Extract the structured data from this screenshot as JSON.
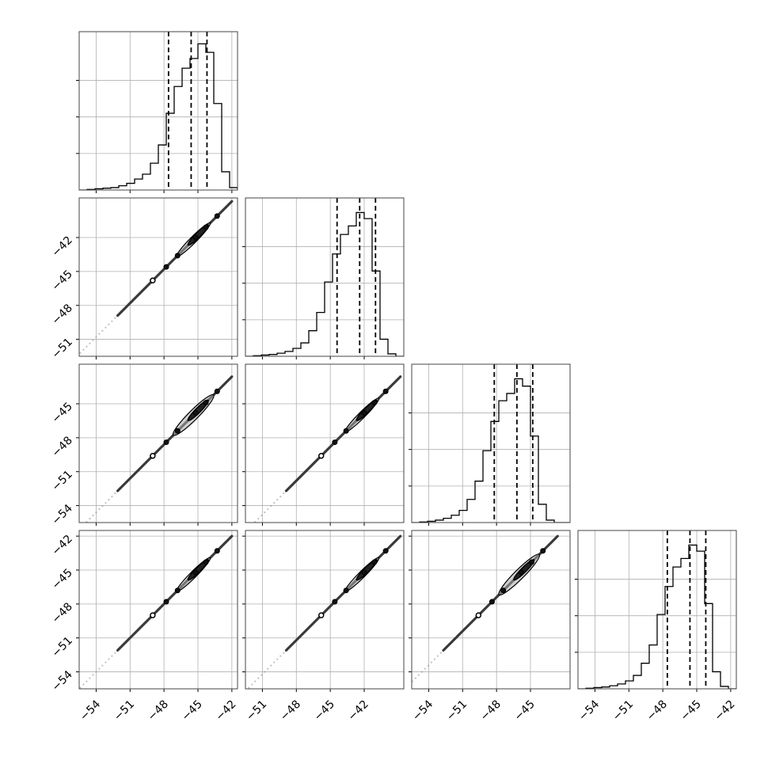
{
  "chart_data": {
    "type": "corner",
    "n_parameters": 4,
    "axis_labels": [
      "",
      "",
      "",
      ""
    ],
    "quantile_fractions": [
      0.16,
      0.5,
      0.84
    ],
    "params": [
      {
        "range": [
          -55.5,
          -41.5
        ],
        "xticks": [
          "−54",
          "−51",
          "−48",
          "−45",
          "−42"
        ],
        "xtick_values": [
          -54,
          -51,
          -48,
          -45,
          -42
        ],
        "yticks": [],
        "ytick_values": [],
        "quantiles": [
          -47.6,
          -45.6,
          -44.2
        ],
        "hist_bins": {
          "start": -55.5,
          "width": 0.7,
          "heights": [
            0.0,
            0.005,
            0.01,
            0.015,
            0.02,
            0.035,
            0.055,
            0.09,
            0.13,
            0.22,
            0.37,
            0.63,
            0.85,
            1.0,
            1.08,
            1.2,
            1.13,
            0.71,
            0.15,
            0.02
          ]
        }
      },
      {
        "range": [
          -52.5,
          -38.5
        ],
        "xticks": [
          "−51",
          "−48",
          "−45",
          "−42"
        ],
        "xtick_values": [
          -51,
          -48,
          -45,
          -42
        ],
        "yticks": [
          "−42",
          "−45",
          "−48",
          "−51"
        ],
        "ytick_values": [
          -42,
          -45,
          -48,
          -51
        ],
        "quantiles": [
          -44.4,
          -42.4,
          -41.0
        ],
        "hist_bins": {
          "start": -52.5,
          "width": 0.7,
          "heights": [
            0.0,
            0.005,
            0.01,
            0.015,
            0.025,
            0.04,
            0.065,
            0.11,
            0.21,
            0.36,
            0.61,
            0.84,
            1.0,
            1.07,
            1.18,
            1.13,
            0.7,
            0.14,
            0.02,
            0.0
          ]
        }
      },
      {
        "range": [
          -55.5,
          -41.5
        ],
        "xticks": [
          "−54",
          "−51",
          "−48",
          "−45"
        ],
        "xtick_values": [
          -54,
          -51,
          -48,
          -45
        ],
        "yticks": [
          "−45",
          "−48",
          "−51",
          "−54"
        ],
        "ytick_values": [
          -45,
          -48,
          -51,
          -54
        ],
        "quantiles": [
          -48.2,
          -46.2,
          -44.8
        ],
        "hist_bins": {
          "start": -55.5,
          "width": 0.7,
          "heights": [
            0.0,
            0.005,
            0.01,
            0.02,
            0.035,
            0.06,
            0.1,
            0.19,
            0.34,
            0.59,
            0.83,
            1.0,
            1.06,
            1.18,
            1.12,
            0.71,
            0.15,
            0.02,
            0.0,
            0.0
          ]
        }
      },
      {
        "range": [
          -55.5,
          -41.5
        ],
        "xticks": [
          "−54",
          "−51",
          "−48",
          "−45",
          "−42"
        ],
        "xtick_values": [
          -54,
          -51,
          -48,
          -45,
          -42
        ],
        "yticks": [
          "−42",
          "−45",
          "−48",
          "−51",
          "−54"
        ],
        "ytick_values": [
          -42,
          -45,
          -48,
          -51,
          -54
        ],
        "quantiles": [
          -47.6,
          -45.6,
          -44.2
        ],
        "hist_bins": {
          "start": -55.5,
          "width": 0.7,
          "heights": [
            0.0,
            0.005,
            0.01,
            0.015,
            0.025,
            0.04,
            0.065,
            0.11,
            0.21,
            0.36,
            0.61,
            0.84,
            1.0,
            1.07,
            1.18,
            1.13,
            0.7,
            0.14,
            0.02,
            0.0
          ]
        }
      }
    ],
    "hist_ylim": [
      0,
      1.3
    ],
    "hist_ygrid": [
      0.3,
      0.6,
      0.9
    ],
    "grid": true,
    "colors": {
      "line": "#000000",
      "grid": "#b0b0b0",
      "scatter": "#8c8c8c",
      "contour_fill": "#aaaaaa"
    }
  }
}
